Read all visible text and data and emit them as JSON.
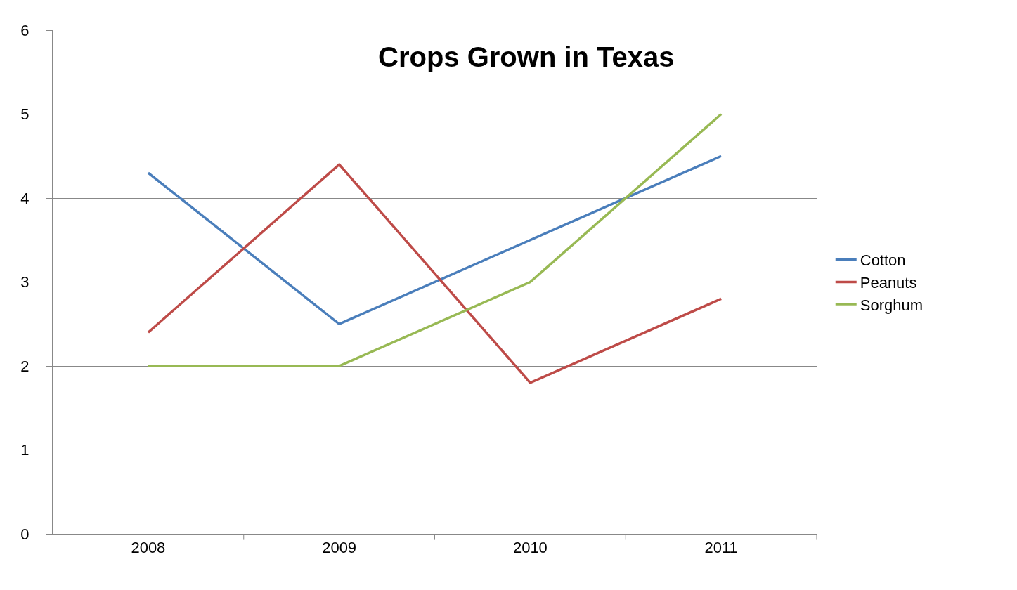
{
  "chart_data": {
    "type": "line",
    "title": "Crops Grown in Texas",
    "categories": [
      "2008",
      "2009",
      "2010",
      "2011"
    ],
    "series": [
      {
        "name": "Cotton",
        "color": "#4a7ebb",
        "values": [
          4.3,
          2.5,
          3.5,
          4.5
        ]
      },
      {
        "name": "Peanuts",
        "color": "#be4b48",
        "values": [
          2.4,
          4.4,
          1.8,
          2.8
        ]
      },
      {
        "name": "Sorghum",
        "color": "#98b954",
        "values": [
          2,
          2,
          3,
          5
        ]
      }
    ],
    "ylim": [
      0,
      6
    ],
    "yticks": [
      0,
      1,
      2,
      3,
      4,
      5,
      6
    ],
    "grid": "y",
    "legend": "right",
    "line_style": "solid"
  }
}
